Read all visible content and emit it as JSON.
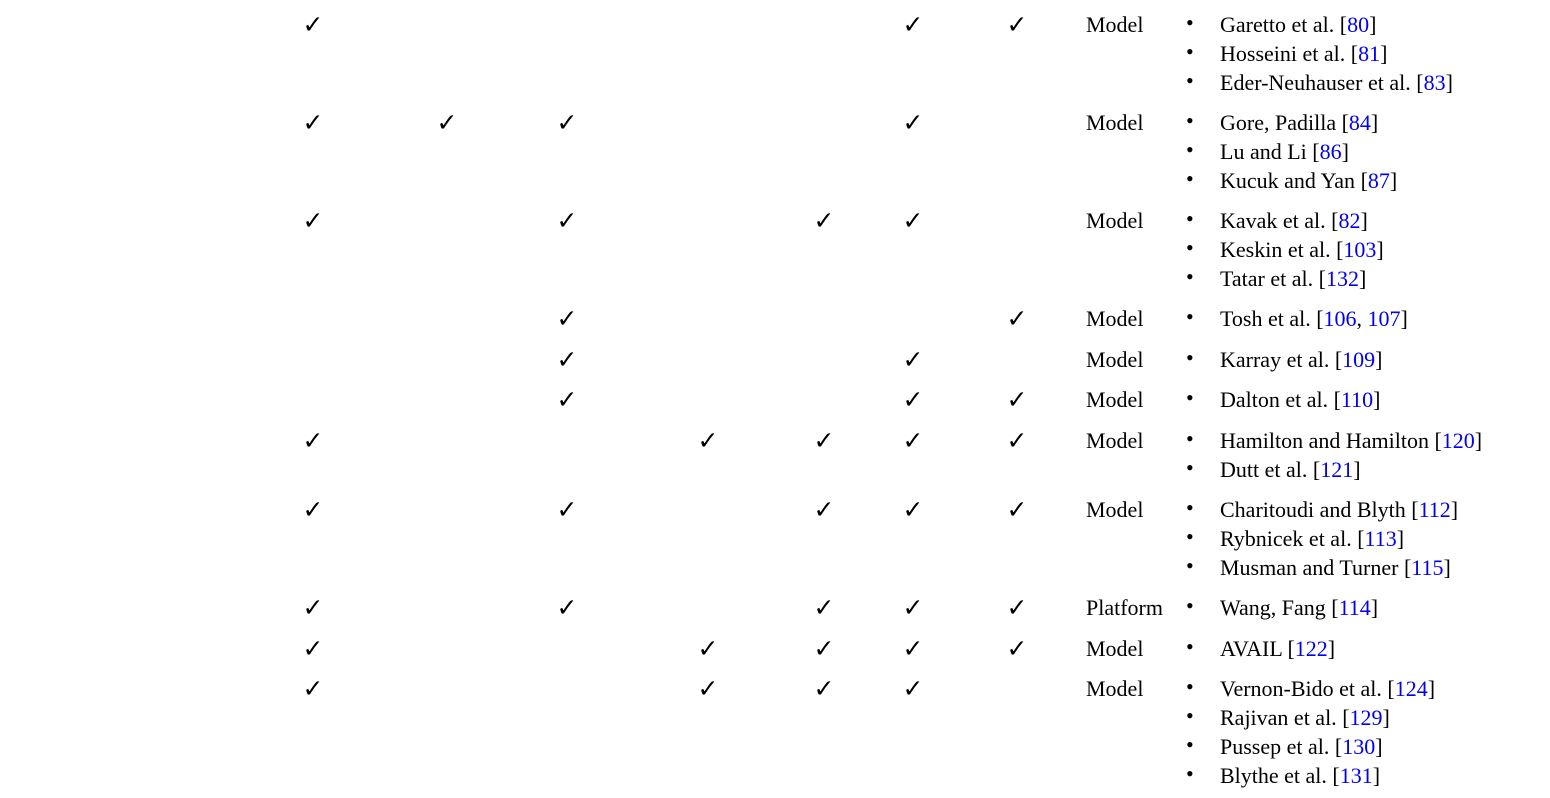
{
  "columns": 7,
  "colors": {
    "text": "#000000",
    "link": "#0000ee",
    "background": "#ffffff"
  },
  "check_glyph": "✓",
  "bullet_glyph": "•",
  "rows": [
    {
      "checks": [
        true,
        false,
        false,
        false,
        false,
        true,
        true
      ],
      "type": "Model",
      "refs": [
        {
          "author": "Garetto et al.",
          "cites": [
            "80"
          ]
        },
        {
          "author": "Hosseini et al.",
          "cites": [
            "81"
          ]
        },
        {
          "author": "Eder-Neuhauser et al.",
          "cites": [
            "83"
          ]
        }
      ]
    },
    {
      "checks": [
        true,
        true,
        true,
        false,
        false,
        true,
        false
      ],
      "type": "Model",
      "refs": [
        {
          "author": "Gore, Padilla",
          "cites": [
            "84"
          ]
        },
        {
          "author": "Lu and Li",
          "cites": [
            "86"
          ]
        },
        {
          "author": "Kucuk and Yan",
          "cites": [
            "87"
          ]
        }
      ]
    },
    {
      "checks": [
        true,
        false,
        true,
        false,
        true,
        true,
        false
      ],
      "type": "Model",
      "refs": [
        {
          "author": "Kavak et al.",
          "cites": [
            "82"
          ]
        },
        {
          "author": "Keskin et al.",
          "cites": [
            "103"
          ]
        },
        {
          "author": "Tatar et al.",
          "cites": [
            "132"
          ]
        }
      ]
    },
    {
      "checks": [
        false,
        false,
        true,
        false,
        false,
        false,
        true
      ],
      "type": "Model",
      "refs": [
        {
          "author": "Tosh et al.",
          "cites": [
            "106",
            "107"
          ]
        }
      ]
    },
    {
      "checks": [
        false,
        false,
        true,
        false,
        false,
        true,
        false
      ],
      "type": "Model",
      "refs": [
        {
          "author": "Karray et al.",
          "cites": [
            "109"
          ]
        }
      ]
    },
    {
      "checks": [
        false,
        false,
        true,
        false,
        false,
        true,
        true
      ],
      "type": "Model",
      "refs": [
        {
          "author": "Dalton et al.",
          "cites": [
            "110"
          ]
        }
      ]
    },
    {
      "checks": [
        true,
        false,
        false,
        true,
        true,
        true,
        true
      ],
      "type": "Model",
      "refs": [
        {
          "author": "Hamilton and Hamilton",
          "cites": [
            "120"
          ]
        },
        {
          "author": "Dutt et al.",
          "cites": [
            "121"
          ]
        }
      ]
    },
    {
      "checks": [
        true,
        false,
        true,
        false,
        true,
        true,
        true
      ],
      "type": "Model",
      "refs": [
        {
          "author": "Charitoudi and Blyth",
          "cites": [
            "112"
          ]
        },
        {
          "author": "Rybnicek et al.",
          "cites": [
            "113"
          ]
        },
        {
          "author": "Musman and Turner",
          "cites": [
            "115"
          ]
        }
      ]
    },
    {
      "checks": [
        true,
        false,
        true,
        false,
        true,
        true,
        true
      ],
      "type": "Platform",
      "refs": [
        {
          "author": "Wang, Fang",
          "cites": [
            "114"
          ]
        }
      ]
    },
    {
      "checks": [
        true,
        false,
        false,
        true,
        true,
        true,
        true
      ],
      "type": "Model",
      "refs": [
        {
          "author": "AVAIL",
          "cites": [
            "122"
          ]
        }
      ]
    },
    {
      "checks": [
        true,
        false,
        false,
        true,
        true,
        true,
        false
      ],
      "type": "Model",
      "refs": [
        {
          "author": "Vernon-Bido et al.",
          "cites": [
            "124"
          ]
        },
        {
          "author": "Rajivan et al.",
          "cites": [
            "129"
          ]
        },
        {
          "author": "Pussep et al.",
          "cites": [
            "130"
          ]
        },
        {
          "author": "Blythe et al.",
          "cites": [
            "131"
          ]
        }
      ]
    }
  ]
}
